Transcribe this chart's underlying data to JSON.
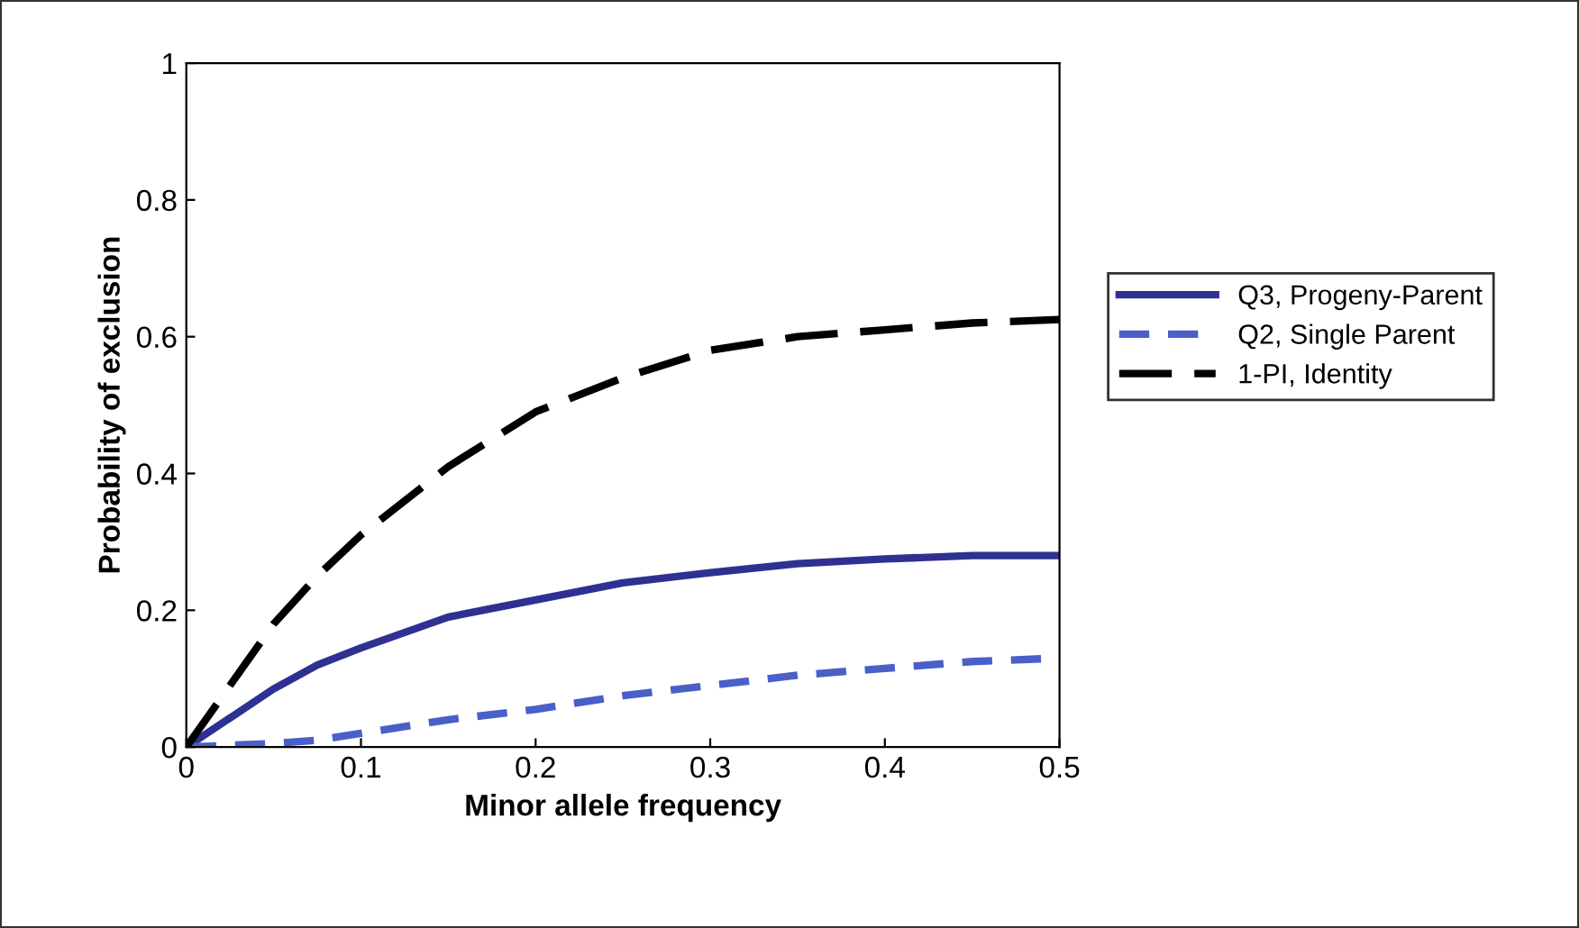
{
  "chart_data": {
    "type": "line",
    "xlabel": "Minor allele frequency",
    "ylabel": "Probability of exclusion",
    "x": [
      0,
      0.05,
      0.075,
      0.1,
      0.15,
      0.2,
      0.25,
      0.3,
      0.35,
      0.4,
      0.45,
      0.5
    ],
    "series": [
      {
        "name": "Q3, Progeny-Parent",
        "color": "#2e3192",
        "line_style": "solid",
        "values": [
          0,
          0.085,
          0.12,
          0.145,
          0.19,
          0.215,
          0.24,
          0.255,
          0.268,
          0.275,
          0.28,
          0.28
        ]
      },
      {
        "name": "Q2, Single Parent",
        "color": "#4a5fc8",
        "line_style": "dashed",
        "values": [
          0,
          0.005,
          0.01,
          0.02,
          0.04,
          0.055,
          0.075,
          0.09,
          0.105,
          0.115,
          0.125,
          0.13
        ]
      },
      {
        "name": "1-PI, Identity",
        "color": "#000000",
        "line_style": "dashed",
        "values": [
          0,
          0.18,
          0.25,
          0.31,
          0.41,
          0.49,
          0.54,
          0.58,
          0.6,
          0.61,
          0.62,
          0.625
        ]
      }
    ],
    "xlim": [
      0,
      0.5
    ],
    "xticks": [
      0,
      0.1,
      0.2,
      0.3,
      0.4,
      0.5
    ],
    "ylim": [
      0,
      1
    ],
    "yticks": [
      0,
      0.2,
      0.4,
      0.6,
      0.8,
      1
    ],
    "grid": false,
    "legend": "right",
    "marker": "none"
  }
}
